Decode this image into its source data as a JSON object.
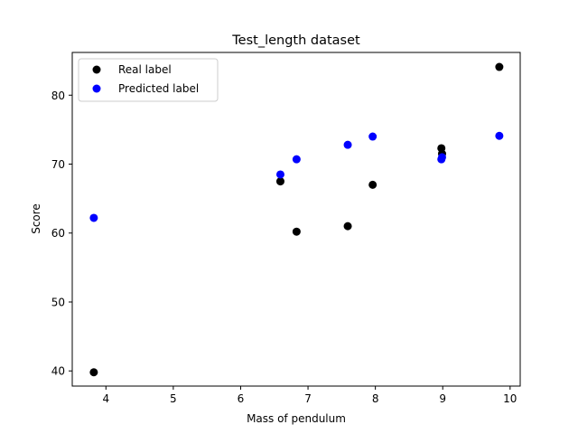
{
  "chart_data": {
    "type": "scatter",
    "title": "Test_length dataset",
    "xlabel": "Mass of pendulum",
    "ylabel": "Score",
    "xlim": [
      3.5,
      10.15
    ],
    "ylim": [
      37.8,
      86.2
    ],
    "xticks": [
      4,
      5,
      6,
      7,
      8,
      9,
      10
    ],
    "yticks": [
      40,
      50,
      60,
      70,
      80
    ],
    "grid": false,
    "legend_position": "top-left",
    "series": [
      {
        "name": "Real label",
        "color": "#000000",
        "points": [
          {
            "x": 3.82,
            "y": 39.8
          },
          {
            "x": 6.59,
            "y": 67.5
          },
          {
            "x": 6.83,
            "y": 60.2
          },
          {
            "x": 7.59,
            "y": 61.0
          },
          {
            "x": 7.96,
            "y": 67.0
          },
          {
            "x": 8.98,
            "y": 72.3
          },
          {
            "x": 8.99,
            "y": 71.5
          },
          {
            "x": 9.84,
            "y": 84.1
          }
        ]
      },
      {
        "name": "Predicted label",
        "color": "#0000ff",
        "points": [
          {
            "x": 3.82,
            "y": 62.2
          },
          {
            "x": 6.59,
            "y": 68.5
          },
          {
            "x": 6.83,
            "y": 70.7
          },
          {
            "x": 7.59,
            "y": 72.8
          },
          {
            "x": 7.96,
            "y": 74.0
          },
          {
            "x": 8.98,
            "y": 70.7
          },
          {
            "x": 8.99,
            "y": 71.0
          },
          {
            "x": 9.84,
            "y": 74.1
          }
        ]
      }
    ]
  }
}
